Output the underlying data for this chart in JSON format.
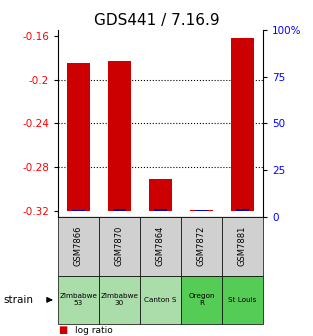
{
  "title": "GDS441 / 7.16.9",
  "samples": [
    "GSM7866",
    "GSM7870",
    "GSM7864",
    "GSM7872",
    "GSM7881"
  ],
  "log_ratios": [
    -0.185,
    -0.183,
    -0.291,
    -0.319,
    -0.162
  ],
  "percentile_ranks": [
    2,
    8,
    8,
    1,
    8
  ],
  "strains": [
    "Zimbabwe\n53",
    "Zimbabwe\n30",
    "Canton S",
    "Oregon\nR",
    "St Louis"
  ],
  "strain_colors": [
    "#aaddaa",
    "#aaddaa",
    "#aaddaa",
    "#55cc55",
    "#55cc55"
  ],
  "ylim_left": [
    -0.325,
    -0.155
  ],
  "ylim_right": [
    0,
    100
  ],
  "yticks_left": [
    -0.32,
    -0.28,
    -0.24,
    -0.2,
    -0.16
  ],
  "yticks_right": [
    0,
    25,
    50,
    75,
    100
  ],
  "bar_color": "#cc0000",
  "percentile_color": "#0000cc",
  "baseline": -0.32,
  "bar_width": 0.55,
  "bg_color": "#ffffff",
  "title_fontsize": 11,
  "tick_fontsize": 7.5
}
